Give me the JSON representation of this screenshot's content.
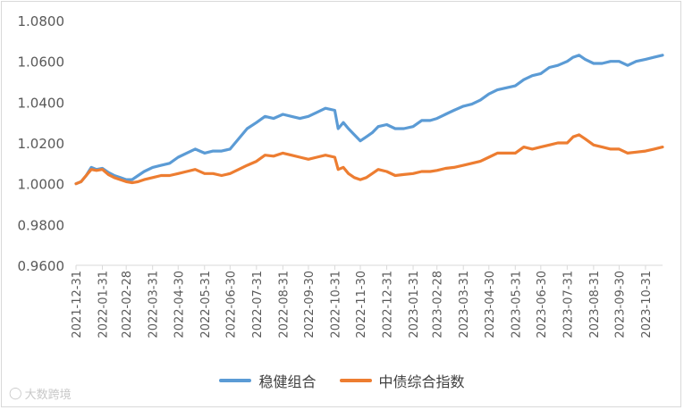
{
  "chart_data": {
    "type": "line",
    "title": "",
    "xlabel": "",
    "ylabel": "",
    "ylim": [
      0.96,
      1.08
    ],
    "y_ticks": [
      "0.9600",
      "0.9800",
      "1.0000",
      "1.0200",
      "1.0400",
      "1.0600",
      "1.0800"
    ],
    "x_ticks": [
      "2021-12-31",
      "2022-01-31",
      "2022-02-28",
      "2022-03-31",
      "2022-04-30",
      "2022-05-31",
      "2022-06-30",
      "2022-07-31",
      "2022-08-31",
      "2022-09-30",
      "2022-10-31",
      "2022-11-30",
      "2022-12-31",
      "2023-01-31",
      "2023-02-28",
      "2023-03-31",
      "2023-04-30",
      "2023-05-31",
      "2023-06-30",
      "2023-07-31",
      "2023-08-31",
      "2023-09-30",
      "2023-10-31"
    ],
    "grid": false,
    "legend_position": "bottom",
    "series": [
      {
        "name": "稳健组合",
        "color": "#5b9bd5",
        "points": [
          [
            "2021-12-31",
            1.0
          ],
          [
            "2022-01-06",
            1.001
          ],
          [
            "2022-01-12",
            1.004
          ],
          [
            "2022-01-18",
            1.008
          ],
          [
            "2022-01-24",
            1.007
          ],
          [
            "2022-01-31",
            1.0075
          ],
          [
            "2022-02-07",
            1.0055
          ],
          [
            "2022-02-14",
            1.004
          ],
          [
            "2022-02-21",
            1.003
          ],
          [
            "2022-02-28",
            1.002
          ],
          [
            "2022-03-07",
            1.002
          ],
          [
            "2022-03-14",
            1.004
          ],
          [
            "2022-03-21",
            1.006
          ],
          [
            "2022-03-31",
            1.008
          ],
          [
            "2022-04-10",
            1.009
          ],
          [
            "2022-04-20",
            1.01
          ],
          [
            "2022-04-30",
            1.013
          ],
          [
            "2022-05-10",
            1.015
          ],
          [
            "2022-05-20",
            1.017
          ],
          [
            "2022-05-31",
            1.015
          ],
          [
            "2022-06-10",
            1.016
          ],
          [
            "2022-06-20",
            1.016
          ],
          [
            "2022-06-30",
            1.017
          ],
          [
            "2022-07-10",
            1.022
          ],
          [
            "2022-07-20",
            1.027
          ],
          [
            "2022-07-31",
            1.03
          ],
          [
            "2022-08-10",
            1.033
          ],
          [
            "2022-08-20",
            1.032
          ],
          [
            "2022-08-31",
            1.034
          ],
          [
            "2022-09-10",
            1.033
          ],
          [
            "2022-09-20",
            1.032
          ],
          [
            "2022-09-30",
            1.033
          ],
          [
            "2022-10-10",
            1.035
          ],
          [
            "2022-10-20",
            1.037
          ],
          [
            "2022-10-31",
            1.036
          ],
          [
            "2022-11-04",
            1.027
          ],
          [
            "2022-11-10",
            1.03
          ],
          [
            "2022-11-16",
            1.027
          ],
          [
            "2022-11-23",
            1.024
          ],
          [
            "2022-11-30",
            1.021
          ],
          [
            "2022-12-07",
            1.023
          ],
          [
            "2022-12-14",
            1.025
          ],
          [
            "2022-12-21",
            1.028
          ],
          [
            "2022-12-31",
            1.029
          ],
          [
            "2023-01-10",
            1.027
          ],
          [
            "2023-01-20",
            1.027
          ],
          [
            "2023-01-31",
            1.028
          ],
          [
            "2023-02-10",
            1.031
          ],
          [
            "2023-02-20",
            1.031
          ],
          [
            "2023-02-28",
            1.032
          ],
          [
            "2023-03-10",
            1.034
          ],
          [
            "2023-03-20",
            1.036
          ],
          [
            "2023-03-31",
            1.038
          ],
          [
            "2023-04-10",
            1.039
          ],
          [
            "2023-04-20",
            1.041
          ],
          [
            "2023-04-30",
            1.044
          ],
          [
            "2023-05-10",
            1.046
          ],
          [
            "2023-05-20",
            1.047
          ],
          [
            "2023-05-31",
            1.048
          ],
          [
            "2023-06-10",
            1.051
          ],
          [
            "2023-06-20",
            1.053
          ],
          [
            "2023-06-30",
            1.054
          ],
          [
            "2023-07-10",
            1.057
          ],
          [
            "2023-07-20",
            1.058
          ],
          [
            "2023-07-31",
            1.06
          ],
          [
            "2023-08-07",
            1.062
          ],
          [
            "2023-08-14",
            1.063
          ],
          [
            "2023-08-21",
            1.061
          ],
          [
            "2023-08-31",
            1.059
          ],
          [
            "2023-09-10",
            1.059
          ],
          [
            "2023-09-20",
            1.06
          ],
          [
            "2023-09-30",
            1.06
          ],
          [
            "2023-10-10",
            1.058
          ],
          [
            "2023-10-20",
            1.06
          ],
          [
            "2023-10-31",
            1.061
          ],
          [
            "2023-11-10",
            1.062
          ],
          [
            "2023-11-20",
            1.063
          ]
        ]
      },
      {
        "name": "中债综合指数",
        "color": "#ed7d31",
        "points": [
          [
            "2021-12-31",
            1.0
          ],
          [
            "2022-01-06",
            1.001
          ],
          [
            "2022-01-12",
            1.004
          ],
          [
            "2022-01-18",
            1.007
          ],
          [
            "2022-01-24",
            1.0065
          ],
          [
            "2022-01-31",
            1.007
          ],
          [
            "2022-02-07",
            1.0045
          ],
          [
            "2022-02-14",
            1.003
          ],
          [
            "2022-02-21",
            1.002
          ],
          [
            "2022-02-28",
            1.001
          ],
          [
            "2022-03-07",
            1.0005
          ],
          [
            "2022-03-14",
            1.001
          ],
          [
            "2022-03-21",
            1.002
          ],
          [
            "2022-03-31",
            1.003
          ],
          [
            "2022-04-10",
            1.004
          ],
          [
            "2022-04-20",
            1.004
          ],
          [
            "2022-04-30",
            1.005
          ],
          [
            "2022-05-10",
            1.006
          ],
          [
            "2022-05-20",
            1.007
          ],
          [
            "2022-05-31",
            1.005
          ],
          [
            "2022-06-10",
            1.005
          ],
          [
            "2022-06-20",
            1.004
          ],
          [
            "2022-06-30",
            1.005
          ],
          [
            "2022-07-10",
            1.007
          ],
          [
            "2022-07-20",
            1.009
          ],
          [
            "2022-07-31",
            1.011
          ],
          [
            "2022-08-10",
            1.014
          ],
          [
            "2022-08-20",
            1.0135
          ],
          [
            "2022-08-31",
            1.015
          ],
          [
            "2022-09-10",
            1.014
          ],
          [
            "2022-09-20",
            1.013
          ],
          [
            "2022-09-30",
            1.012
          ],
          [
            "2022-10-10",
            1.013
          ],
          [
            "2022-10-20",
            1.014
          ],
          [
            "2022-10-31",
            1.013
          ],
          [
            "2022-11-04",
            1.007
          ],
          [
            "2022-11-10",
            1.008
          ],
          [
            "2022-11-16",
            1.005
          ],
          [
            "2022-11-23",
            1.003
          ],
          [
            "2022-11-30",
            1.002
          ],
          [
            "2022-12-07",
            1.003
          ],
          [
            "2022-12-14",
            1.005
          ],
          [
            "2022-12-21",
            1.007
          ],
          [
            "2022-12-31",
            1.006
          ],
          [
            "2023-01-10",
            1.004
          ],
          [
            "2023-01-20",
            1.0045
          ],
          [
            "2023-01-31",
            1.005
          ],
          [
            "2023-02-10",
            1.006
          ],
          [
            "2023-02-20",
            1.006
          ],
          [
            "2023-02-28",
            1.0065
          ],
          [
            "2023-03-10",
            1.0075
          ],
          [
            "2023-03-20",
            1.008
          ],
          [
            "2023-03-31",
            1.009
          ],
          [
            "2023-04-10",
            1.01
          ],
          [
            "2023-04-20",
            1.011
          ],
          [
            "2023-04-30",
            1.013
          ],
          [
            "2023-05-10",
            1.015
          ],
          [
            "2023-05-20",
            1.015
          ],
          [
            "2023-05-31",
            1.015
          ],
          [
            "2023-06-10",
            1.018
          ],
          [
            "2023-06-20",
            1.017
          ],
          [
            "2023-06-30",
            1.018
          ],
          [
            "2023-07-10",
            1.019
          ],
          [
            "2023-07-20",
            1.02
          ],
          [
            "2023-07-31",
            1.02
          ],
          [
            "2023-08-07",
            1.023
          ],
          [
            "2023-08-14",
            1.024
          ],
          [
            "2023-08-21",
            1.022
          ],
          [
            "2023-08-31",
            1.019
          ],
          [
            "2023-09-10",
            1.018
          ],
          [
            "2023-09-20",
            1.017
          ],
          [
            "2023-09-30",
            1.017
          ],
          [
            "2023-10-10",
            1.015
          ],
          [
            "2023-10-20",
            1.0155
          ],
          [
            "2023-10-31",
            1.016
          ],
          [
            "2023-11-10",
            1.017
          ],
          [
            "2023-11-20",
            1.018
          ]
        ]
      }
    ]
  },
  "watermark": {
    "icon": "logo-icon",
    "text": "大数跨境"
  }
}
